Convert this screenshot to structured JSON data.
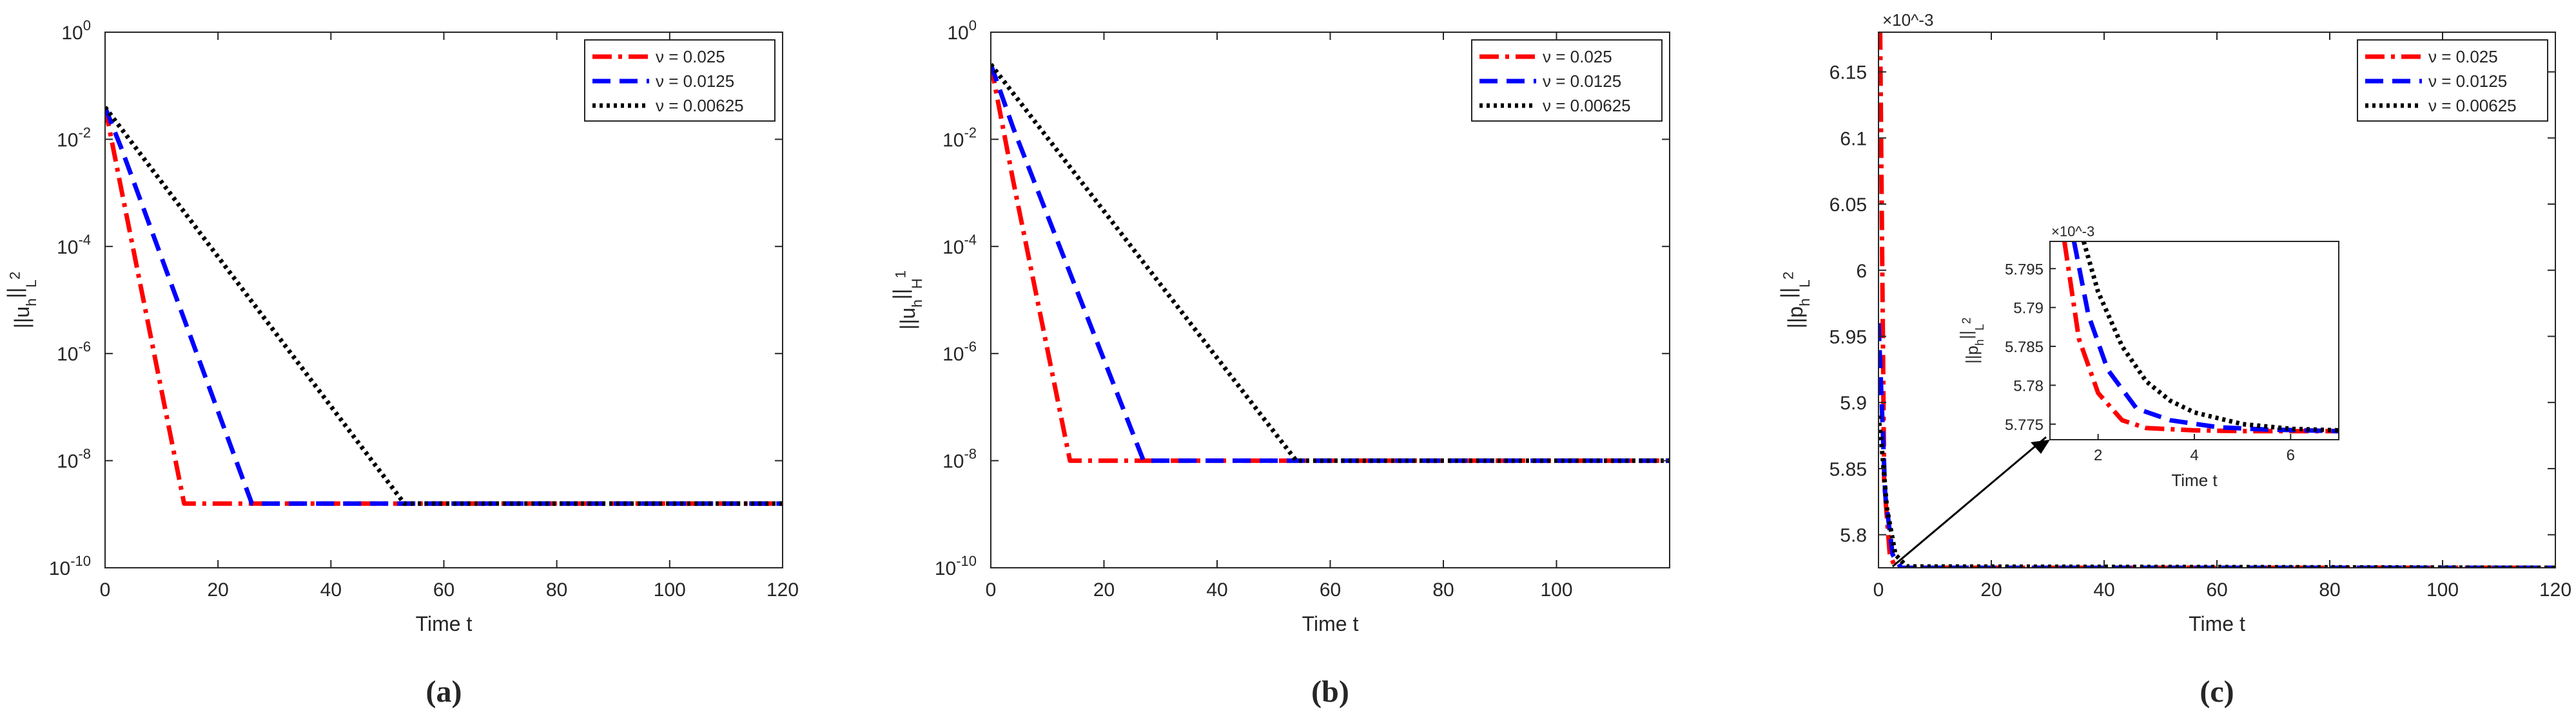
{
  "chart_data": [
    {
      "type": "line",
      "panel_label": "(a)",
      "scale": "log",
      "xlabel": "Time t",
      "ylabel": "||u_h||_L^2",
      "xlim": [
        0,
        120
      ],
      "ylim_exp": [
        -10,
        0
      ],
      "xticks": [
        "0",
        "20",
        "40",
        "60",
        "80",
        "100",
        "120"
      ],
      "yticks": [
        {
          "base": "10",
          "exp": "-10"
        },
        {
          "base": "10",
          "exp": "-8"
        },
        {
          "base": "10",
          "exp": "-6"
        },
        {
          "base": "10",
          "exp": "-4"
        },
        {
          "base": "10",
          "exp": "-2"
        },
        {
          "base": "10",
          "exp": "0"
        }
      ],
      "legend_position": "top-right",
      "series": [
        {
          "name": "ν = 0.025",
          "color": "#ff0000",
          "style": "dashdot",
          "x": [
            0,
            3,
            14,
            120
          ],
          "log10_y": [
            -1.4,
            -3.0,
            -8.8,
            -8.8
          ]
        },
        {
          "name": "ν = 0.0125",
          "color": "#0000ff",
          "style": "dash",
          "x": [
            0,
            3,
            26,
            120
          ],
          "log10_y": [
            -1.4,
            -2.2,
            -8.8,
            -8.8
          ]
        },
        {
          "name": "ν = 0.00625",
          "color": "#000000",
          "style": "dot",
          "x": [
            0,
            53,
            120
          ],
          "log10_y": [
            -1.4,
            -8.8,
            -8.8
          ]
        }
      ]
    },
    {
      "type": "line",
      "panel_label": "(b)",
      "scale": "log",
      "xlabel": "Time t",
      "ylabel": "||u_h||_H^1",
      "xlim": [
        0,
        120
      ],
      "ylim_exp": [
        -10,
        0
      ],
      "xticks": [
        "0",
        "20",
        "40",
        "60",
        "80",
        "100"
      ],
      "yticks": [
        {
          "base": "10",
          "exp": "-10"
        },
        {
          "base": "10",
          "exp": "-8"
        },
        {
          "base": "10",
          "exp": "-6"
        },
        {
          "base": "10",
          "exp": "-4"
        },
        {
          "base": "10",
          "exp": "-2"
        },
        {
          "base": "10",
          "exp": "0"
        }
      ],
      "legend_position": "top-right",
      "series": [
        {
          "name": "ν = 0.025",
          "color": "#ff0000",
          "style": "dashdot",
          "x": [
            0,
            4,
            14,
            120
          ],
          "log10_y": [
            -0.6,
            -2.8,
            -8.0,
            -8.0
          ]
        },
        {
          "name": "ν = 0.0125",
          "color": "#0000ff",
          "style": "dash",
          "x": [
            0,
            4,
            27,
            120
          ],
          "log10_y": [
            -0.6,
            -1.8,
            -8.0,
            -8.0
          ]
        },
        {
          "name": "ν = 0.00625",
          "color": "#000000",
          "style": "dot",
          "x": [
            0,
            54,
            120
          ],
          "log10_y": [
            -0.6,
            -8.0,
            -8.0
          ]
        }
      ]
    },
    {
      "type": "line",
      "panel_label": "(c)",
      "scale": "linear",
      "multiplier": "×10^-3",
      "xlabel": "Time t",
      "ylabel": "||p_h||_L^2",
      "xlim": [
        0,
        120
      ],
      "ylim": [
        5.775,
        6.18
      ],
      "xticks": [
        "0",
        "20",
        "40",
        "60",
        "80",
        "100",
        "120"
      ],
      "yticks": [
        "5.8",
        "5.85",
        "5.9",
        "5.95",
        "6",
        "6.05",
        "6.1",
        "6.15"
      ],
      "legend_position": "top-right",
      "series": [
        {
          "name": "ν = 0.025",
          "color": "#ff0000",
          "style": "dashdot",
          "x": [
            0,
            0.3,
            1,
            2,
            3,
            120
          ],
          "y": [
            6.18,
            6.18,
            5.84,
            5.785,
            5.775,
            5.775
          ]
        },
        {
          "name": "ν = 0.0125",
          "color": "#0000ff",
          "style": "dash",
          "x": [
            0,
            0.3,
            1.2,
            2.5,
            4,
            120
          ],
          "y": [
            5.96,
            5.93,
            5.83,
            5.785,
            5.775,
            5.775
          ]
        },
        {
          "name": "ν = 0.00625",
          "color": "#000000",
          "style": "dot",
          "x": [
            0,
            0.5,
            1.5,
            3,
            5,
            120
          ],
          "y": [
            5.89,
            5.87,
            5.82,
            5.785,
            5.776,
            5.775
          ]
        }
      ],
      "inset": {
        "xlabel": "Time t",
        "ylabel": "||p_h||_L^2",
        "multiplier": "×10^-3",
        "xlim": [
          1,
          7
        ],
        "ylim": [
          5.773,
          5.7985
        ],
        "xticks": [
          "2",
          "4",
          "6"
        ],
        "yticks": [
          "5.775",
          "5.78",
          "5.785",
          "5.79",
          "5.795"
        ],
        "series": [
          {
            "name": "ν = 0.025",
            "color": "#ff0000",
            "style": "dashdot",
            "x": [
              1.3,
              1.6,
              2.0,
              2.5,
              3.0,
              4.0,
              5.0,
              7.0
            ],
            "y": [
              5.7985,
              5.786,
              5.779,
              5.7755,
              5.7745,
              5.7742,
              5.7741,
              5.7741
            ]
          },
          {
            "name": "ν = 0.0125",
            "color": "#0000ff",
            "style": "dash",
            "x": [
              1.5,
              1.8,
              2.2,
              2.8,
              3.5,
              4.5,
              5.5,
              7.0
            ],
            "y": [
              5.7985,
              5.789,
              5.782,
              5.777,
              5.7755,
              5.7746,
              5.7743,
              5.7741
            ]
          },
          {
            "name": "ν = 0.00625",
            "color": "#000000",
            "style": "dot",
            "x": [
              1.7,
              2.0,
              2.5,
              3.0,
              3.5,
              4.0,
              5.0,
              6.0,
              7.0
            ],
            "y": [
              5.7985,
              5.792,
              5.785,
              5.7805,
              5.778,
              5.7765,
              5.775,
              5.7744,
              5.7742
            ]
          }
        ]
      }
    }
  ]
}
